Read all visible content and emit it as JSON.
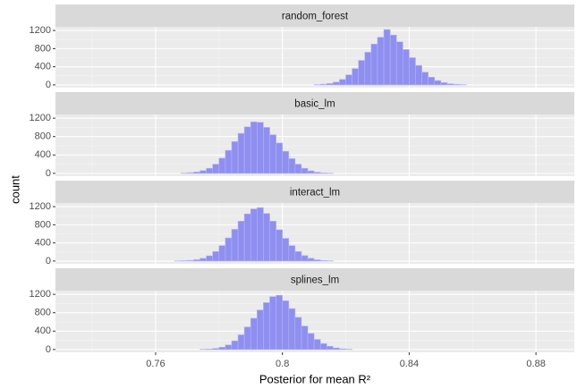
{
  "chart_data": {
    "type": "histogram",
    "xlabel": "Posterior for mean R²",
    "ylabel": "count",
    "color": "#8f8ff0",
    "bins": [
      0.75,
      0.752,
      0.754,
      0.756,
      0.758,
      0.76,
      0.762,
      0.764,
      0.766,
      0.768,
      0.77,
      0.772,
      0.774,
      0.776,
      0.778,
      0.78,
      0.782,
      0.784,
      0.786,
      0.788,
      0.79,
      0.792,
      0.794,
      0.796,
      0.798,
      0.8,
      0.802,
      0.804,
      0.806,
      0.808,
      0.81,
      0.812,
      0.814,
      0.816,
      0.818,
      0.82,
      0.822,
      0.824,
      0.826,
      0.828,
      0.83,
      0.832,
      0.834,
      0.836,
      0.838,
      0.84,
      0.842,
      0.844,
      0.846,
      0.848,
      0.85,
      0.852,
      0.854,
      0.856,
      0.858,
      0.86,
      0.862,
      0.864,
      0.866,
      0.868,
      0.87
    ],
    "facets": [
      {
        "name": "random_forest",
        "counts": [
          0,
          0,
          0,
          0,
          0,
          0,
          0,
          0,
          0,
          0,
          0,
          0,
          0,
          0,
          0,
          0,
          0,
          0,
          0,
          0,
          0,
          0,
          0,
          0,
          0,
          0,
          0,
          0,
          0,
          0,
          5,
          15,
          30,
          60,
          120,
          220,
          360,
          540,
          720,
          900,
          1050,
          1220,
          1100,
          950,
          780,
          600,
          430,
          280,
          170,
          95,
          50,
          25,
          12,
          5,
          0,
          0,
          0,
          0,
          0,
          0
        ]
      },
      {
        "name": "basic_lm",
        "counts": [
          0,
          0,
          0,
          0,
          0,
          0,
          0,
          0,
          0,
          5,
          15,
          30,
          60,
          110,
          200,
          330,
          500,
          690,
          870,
          1010,
          1120,
          1110,
          1000,
          840,
          660,
          480,
          320,
          200,
          110,
          55,
          25,
          10,
          4,
          0,
          0,
          0,
          0,
          0,
          0,
          0,
          0,
          0,
          0,
          0,
          0,
          0,
          0,
          0,
          0,
          0,
          0,
          0,
          0,
          0,
          0,
          0,
          0,
          0,
          0,
          0
        ]
      },
      {
        "name": "interact_lm",
        "counts": [
          0,
          0,
          0,
          0,
          0,
          0,
          0,
          0,
          3,
          8,
          15,
          30,
          60,
          115,
          210,
          340,
          510,
          700,
          880,
          1040,
          1150,
          1180,
          1050,
          880,
          690,
          500,
          340,
          210,
          120,
          60,
          28,
          12,
          5,
          0,
          0,
          0,
          0,
          0,
          0,
          0,
          0,
          0,
          0,
          0,
          0,
          0,
          0,
          0,
          0,
          0,
          0,
          0,
          0,
          0,
          0,
          0,
          0,
          0,
          0,
          0
        ]
      },
      {
        "name": "splines_lm",
        "counts": [
          0,
          0,
          0,
          0,
          0,
          0,
          0,
          0,
          0,
          0,
          0,
          0,
          4,
          10,
          25,
          50,
          100,
          190,
          320,
          490,
          680,
          860,
          1020,
          1150,
          1180,
          1060,
          890,
          700,
          510,
          350,
          220,
          130,
          70,
          35,
          15,
          6,
          0,
          0,
          0,
          0,
          0,
          0,
          0,
          0,
          0,
          0,
          0,
          0,
          0,
          0,
          0,
          0,
          0,
          0,
          0,
          0,
          0,
          0,
          0,
          0
        ]
      }
    ],
    "xlim": [
      0.7284,
      0.8921
    ],
    "xticks": [
      0.76,
      0.8,
      0.84,
      0.88
    ],
    "ylim": [
      -61,
      1281
    ],
    "yticks": [
      0,
      400,
      800,
      1200
    ],
    "grid": true
  }
}
